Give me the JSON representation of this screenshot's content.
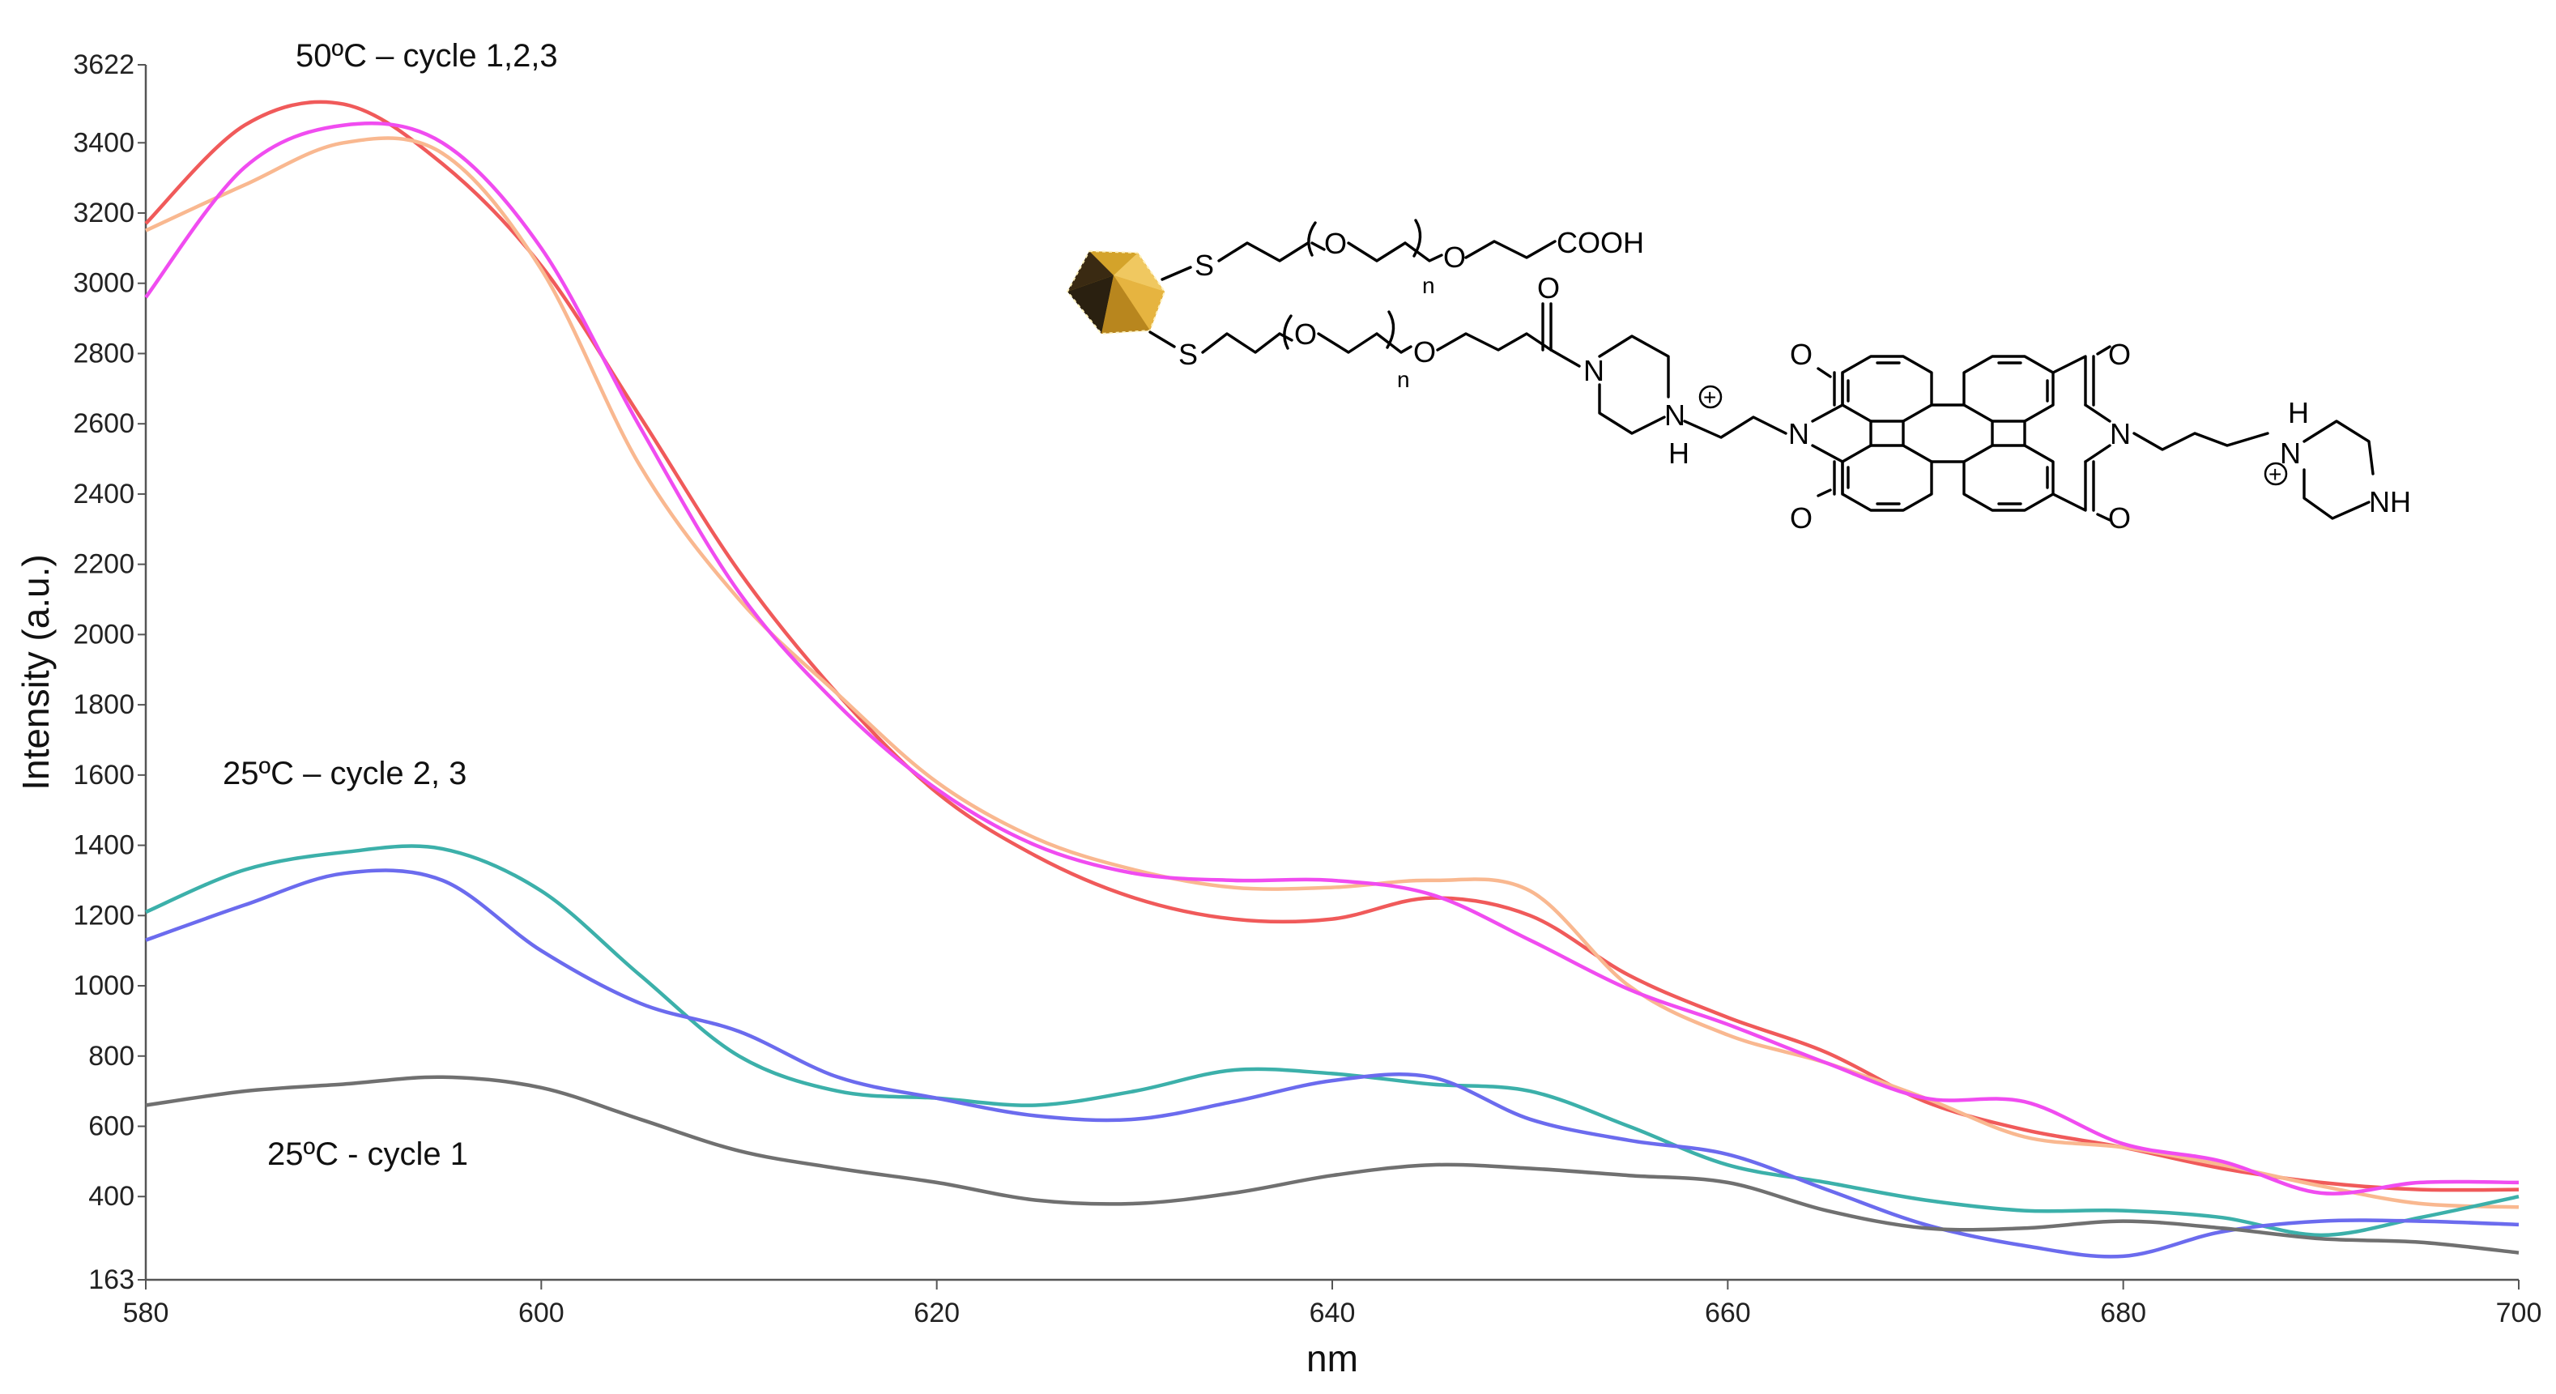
{
  "chart_data": {
    "type": "line",
    "xlabel": "nm",
    "ylabel": "Intensity (a.u.)",
    "xlim": [
      580,
      700
    ],
    "ylim": [
      163,
      3622
    ],
    "x_ticks": [
      580,
      600,
      620,
      640,
      660,
      680,
      700
    ],
    "y_ticks": [
      163,
      400,
      600,
      800,
      1000,
      1200,
      1400,
      1600,
      1800,
      2000,
      2200,
      2400,
      2600,
      2800,
      3000,
      3200,
      3400,
      3622
    ],
    "x": [
      580,
      585,
      590,
      595,
      600,
      605,
      610,
      615,
      620,
      625,
      630,
      635,
      640,
      645,
      650,
      655,
      660,
      665,
      670,
      675,
      680,
      685,
      690,
      695,
      700
    ],
    "series": [
      {
        "color": "#f05a5a",
        "values": [
          3170,
          3450,
          3510,
          3340,
          3050,
          2620,
          2180,
          1830,
          1550,
          1370,
          1250,
          1190,
          1190,
          1250,
          1200,
          1030,
          910,
          810,
          670,
          590,
          540,
          480,
          440,
          420,
          420
        ]
      },
      {
        "color": "#f9b890",
        "values": [
          3150,
          3280,
          3400,
          3370,
          3040,
          2480,
          2100,
          1830,
          1580,
          1420,
          1330,
          1280,
          1280,
          1300,
          1270,
          1000,
          860,
          780,
          680,
          570,
          540,
          490,
          430,
          380,
          370
        ]
      },
      {
        "color": "#f04cf0",
        "values": [
          2960,
          3330,
          3450,
          3400,
          3100,
          2590,
          2120,
          1800,
          1560,
          1400,
          1320,
          1300,
          1300,
          1260,
          1130,
          990,
          890,
          780,
          680,
          670,
          550,
          500,
          410,
          440,
          440
        ]
      },
      {
        "color": "#3cb0aa",
        "values": [
          1210,
          1330,
          1380,
          1390,
          1270,
          1030,
          800,
          700,
          680,
          660,
          700,
          760,
          750,
          720,
          700,
          600,
          490,
          440,
          390,
          360,
          360,
          340,
          290,
          340,
          400
        ]
      },
      {
        "color": "#6b6bee",
        "values": [
          1130,
          1230,
          1320,
          1300,
          1100,
          950,
          870,
          740,
          680,
          630,
          620,
          670,
          730,
          740,
          620,
          560,
          520,
          420,
          320,
          260,
          230,
          300,
          330,
          330,
          320
        ]
      },
      {
        "color": "#707070",
        "values": [
          660,
          700,
          720,
          740,
          710,
          620,
          530,
          480,
          440,
          390,
          380,
          410,
          460,
          490,
          480,
          460,
          440,
          360,
          310,
          310,
          330,
          310,
          280,
          270,
          240
        ]
      }
    ],
    "annotations": [
      "50ºC – cycle 1,2,3",
      "25ºC – cycle 2, 3",
      "25ºC -  cycle 1"
    ]
  },
  "structure": {
    "S": "S",
    "O": "O",
    "n": "n",
    "COOH": "COOH",
    "N": "N",
    "H": "H",
    "NH": "NH",
    "plus": "+"
  }
}
